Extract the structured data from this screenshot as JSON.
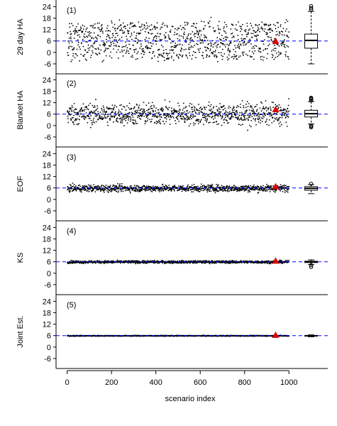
{
  "chart_data": {
    "type": "scatter",
    "xlabel": "scenario index",
    "x_ticks": [
      0,
      200,
      400,
      600,
      800,
      1000
    ],
    "x_range": [
      -50,
      1175
    ],
    "y_ticks": [
      -6,
      0,
      6,
      12,
      18,
      24
    ],
    "y_range": [
      -9,
      26
    ],
    "reference_line": 6,
    "reference_color": "#0000ff",
    "highlight_color": "#dd0000",
    "highlight_x": 940,
    "boxplot_x": 1100,
    "n_points": 1000,
    "panels": [
      {
        "tag": "(1)",
        "ylabel": "29 day HA",
        "center": 6,
        "spread": 5.5,
        "highlight_y": 6,
        "box": {
          "whisker_low": -6,
          "q1": 2.2,
          "median": 6.3,
          "q3": 9.6,
          "whisker_high": 21.5,
          "outliers": [
            22.5,
            23.3,
            24.3
          ]
        }
      },
      {
        "tag": "(2)",
        "ylabel": "Blanket HA",
        "center": 6,
        "spread": 2.8,
        "highlight_y": 8.5,
        "box": {
          "whisker_low": 0.8,
          "q1": 4.5,
          "median": 6.2,
          "q3": 8.0,
          "whisker_high": 12.5,
          "outliers": [
            13.2,
            13.8,
            14.2,
            14.6,
            0.0,
            -0.4,
            -0.9
          ]
        }
      },
      {
        "tag": "(3)",
        "ylabel": "EOF",
        "center": 5.8,
        "spread": 0.9,
        "highlight_y": 6.8,
        "box": {
          "whisker_low": 3.0,
          "q1": 4.8,
          "median": 5.8,
          "q3": 6.7,
          "whisker_high": 7.8,
          "outliers": [
            8.2
          ]
        }
      },
      {
        "tag": "(4)",
        "ylabel": "KS",
        "center": 5.9,
        "spread": 0.35,
        "highlight_y": 6.5,
        "box": {
          "whisker_low": 4.6,
          "q1": 5.6,
          "median": 5.9,
          "q3": 6.3,
          "whisker_high": 7.0,
          "outliers": [
            3.3,
            4.2
          ]
        }
      },
      {
        "tag": "(5)",
        "ylabel": "Joint Est.",
        "center": 5.9,
        "spread": 0.12,
        "highlight_y": 6.3,
        "box": {
          "whisker_low": 5.4,
          "q1": 5.8,
          "median": 5.9,
          "q3": 6.1,
          "whisker_high": 6.4,
          "outliers": []
        }
      }
    ]
  }
}
